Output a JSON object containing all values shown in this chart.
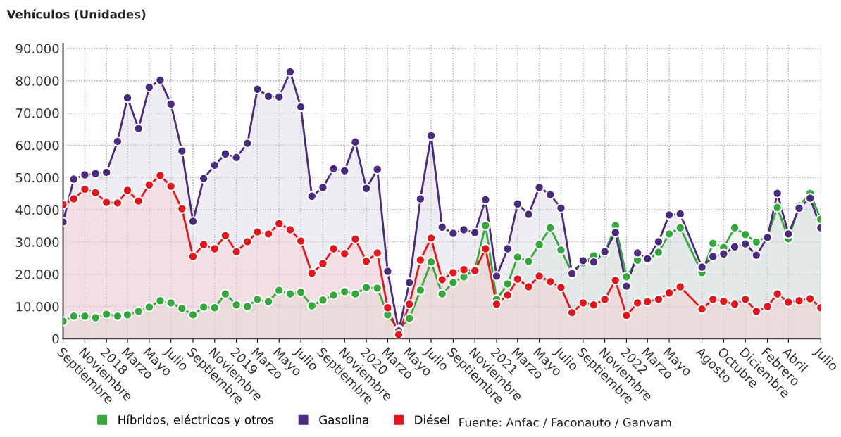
{
  "chart_data": {
    "type": "area",
    "ylabel": "Vehículos (Unidades)",
    "x": [
      "2017-09",
      "2017-10",
      "2017-11",
      "2017-12",
      "2018-01",
      "2018-02",
      "2018-03",
      "2018-04",
      "2018-05",
      "2018-06",
      "2018-07",
      "2018-08",
      "2018-09",
      "2018-10",
      "2018-11",
      "2018-12",
      "2019-01",
      "2019-02",
      "2019-03",
      "2019-04",
      "2019-05",
      "2019-06",
      "2019-07",
      "2019-08",
      "2019-09",
      "2019-10",
      "2019-11",
      "2019-12",
      "2020-01",
      "2020-02",
      "2020-03",
      "2020-04",
      "2020-05",
      "2020-06",
      "2020-07",
      "2020-08",
      "2020-09",
      "2020-10",
      "2020-11",
      "2020-12",
      "2021-01",
      "2021-02",
      "2021-03",
      "2021-04",
      "2021-05",
      "2021-06",
      "2021-07",
      "2021-08",
      "2021-09",
      "2021-10",
      "2021-11",
      "2021-12",
      "2022-01",
      "2022-02",
      "2022-03",
      "2022-04",
      "2022-05",
      "2022-06",
      "2022-08",
      "2022-09",
      "2022-10",
      "2022-11",
      "2022-12",
      "2023-01",
      "2023-02",
      "2023-03",
      "2023-04",
      "2023-05",
      "2023-06",
      "2023-07"
    ],
    "series": [
      {
        "name": "Híbridos, eléctricos y otros",
        "color": "#34a83a",
        "values": [
          5400,
          7000,
          7000,
          6500,
          7600,
          7000,
          7400,
          8500,
          9800,
          11800,
          11100,
          9400,
          7400,
          9800,
          9600,
          13900,
          10500,
          10000,
          12200,
          11500,
          15000,
          13900,
          14400,
          10200,
          12000,
          13500,
          14600,
          13900,
          15900,
          15700,
          7400,
          2800,
          6300,
          15000,
          23800,
          13900,
          17400,
          19200,
          21400,
          35100,
          12200,
          17000,
          25300,
          24000,
          29200,
          34400,
          27500,
          20500,
          23500,
          25700,
          26400,
          35100,
          19200,
          24400,
          24500,
          26800,
          32500,
          34400,
          20500,
          29600,
          28300,
          34400,
          32300,
          30000,
          31800,
          40700,
          31000,
          41200,
          45100,
          37000
        ]
      },
      {
        "name": "Gasolina",
        "color": "#4b2b7f",
        "values": [
          36200,
          49500,
          50800,
          51200,
          51600,
          61200,
          74700,
          65200,
          78000,
          80200,
          72800,
          58200,
          36400,
          49700,
          53800,
          57300,
          56200,
          60600,
          77400,
          75200,
          75000,
          82800,
          71900,
          44200,
          46900,
          52700,
          52100,
          61000,
          46600,
          52500,
          20900,
          2400,
          17400,
          43400,
          63000,
          34600,
          32700,
          33800,
          32900,
          43100,
          19400,
          27900,
          41800,
          38600,
          46900,
          44700,
          40500,
          20200,
          24200,
          23800,
          27000,
          32900,
          16300,
          26600,
          24800,
          30100,
          38400,
          38700,
          22200,
          25500,
          26300,
          28500,
          29400,
          25900,
          31400,
          45100,
          32500,
          40500,
          43600,
          34400
        ]
      },
      {
        "name": "Diésel",
        "color": "#e3171b",
        "values": [
          41600,
          43400,
          46400,
          45300,
          42300,
          42100,
          46000,
          42700,
          47700,
          50600,
          47300,
          40300,
          25500,
          29200,
          27900,
          32000,
          27000,
          30100,
          33100,
          32500,
          35700,
          33800,
          30300,
          20300,
          23300,
          27900,
          26400,
          30900,
          24000,
          26600,
          9600,
          1300,
          10700,
          24400,
          31200,
          18300,
          20500,
          21400,
          21100,
          27900,
          10700,
          13500,
          18500,
          16100,
          19400,
          17700,
          15900,
          8100,
          11100,
          10500,
          12200,
          18100,
          7200,
          11100,
          11500,
          12200,
          14200,
          16100,
          9200,
          12200,
          11600,
          10700,
          12200,
          8500,
          10000,
          13900,
          11300,
          11800,
          12400,
          9600
        ]
      }
    ],
    "xlim": [
      "2017-09",
      "2023-07"
    ],
    "xticks": [
      {
        "value": "2017-09",
        "label": "Septiembre"
      },
      {
        "value": "2017-11",
        "label": "Noviembre"
      },
      {
        "value": "2018-01",
        "label": "2018"
      },
      {
        "value": "2018-03",
        "label": "Marzo"
      },
      {
        "value": "2018-05",
        "label": "Mayo"
      },
      {
        "value": "2018-07",
        "label": "Julio"
      },
      {
        "value": "2018-09",
        "label": "Septiembre"
      },
      {
        "value": "2018-11",
        "label": "Noviembre"
      },
      {
        "value": "2019-01",
        "label": "2019"
      },
      {
        "value": "2019-03",
        "label": "Marzo"
      },
      {
        "value": "2019-05",
        "label": "Mayo"
      },
      {
        "value": "2019-07",
        "label": "Julio"
      },
      {
        "value": "2019-09",
        "label": "Septiembre"
      },
      {
        "value": "2019-11",
        "label": "Noviembre"
      },
      {
        "value": "2020-01",
        "label": "2020"
      },
      {
        "value": "2020-03",
        "label": "Marzo"
      },
      {
        "value": "2020-05",
        "label": "Mayo"
      },
      {
        "value": "2020-07",
        "label": "Julio"
      },
      {
        "value": "2020-09",
        "label": "Septiembre"
      },
      {
        "value": "2020-11",
        "label": "Noviembre"
      },
      {
        "value": "2021-01",
        "label": "2021"
      },
      {
        "value": "2021-03",
        "label": "Marzo"
      },
      {
        "value": "2021-05",
        "label": "Mayo"
      },
      {
        "value": "2021-07",
        "label": "Julio"
      },
      {
        "value": "2021-09",
        "label": "Septiembre"
      },
      {
        "value": "2021-11",
        "label": "Noviembre"
      },
      {
        "value": "2022-01",
        "label": "2022"
      },
      {
        "value": "2022-03",
        "label": "Marzo"
      },
      {
        "value": "2022-05",
        "label": "Mayo"
      },
      {
        "value": "2022-08",
        "label": "Agosto"
      },
      {
        "value": "2022-10",
        "label": "Octubre"
      },
      {
        "value": "2022-12",
        "label": "Diciembre"
      },
      {
        "value": "2023-02",
        "label": "Febrero"
      },
      {
        "value": "2023-04",
        "label": "Abril"
      },
      {
        "value": "2023-07",
        "label": "Julio"
      }
    ],
    "ylim": [
      0,
      91500
    ],
    "yticks": [
      0,
      {
        "value": 10000,
        "label": "10.000"
      },
      {
        "value": 20000,
        "label": "20.000"
      },
      {
        "value": 30000,
        "label": "30.000"
      },
      {
        "value": 40000,
        "label": "40.000"
      },
      {
        "value": 50000,
        "label": "50.000"
      },
      {
        "value": 60000,
        "label": "60.000"
      },
      {
        "value": 70000,
        "label": "70.000"
      },
      {
        "value": 80000,
        "label": "80.000"
      },
      {
        "value": 90000,
        "label": "90.000"
      }
    ],
    "grid": true,
    "legend": "bottom",
    "marker": "circle",
    "line_style": "solid",
    "annotations": [
      "Fuente: Anfac / Faconauto / Ganvam"
    ]
  }
}
